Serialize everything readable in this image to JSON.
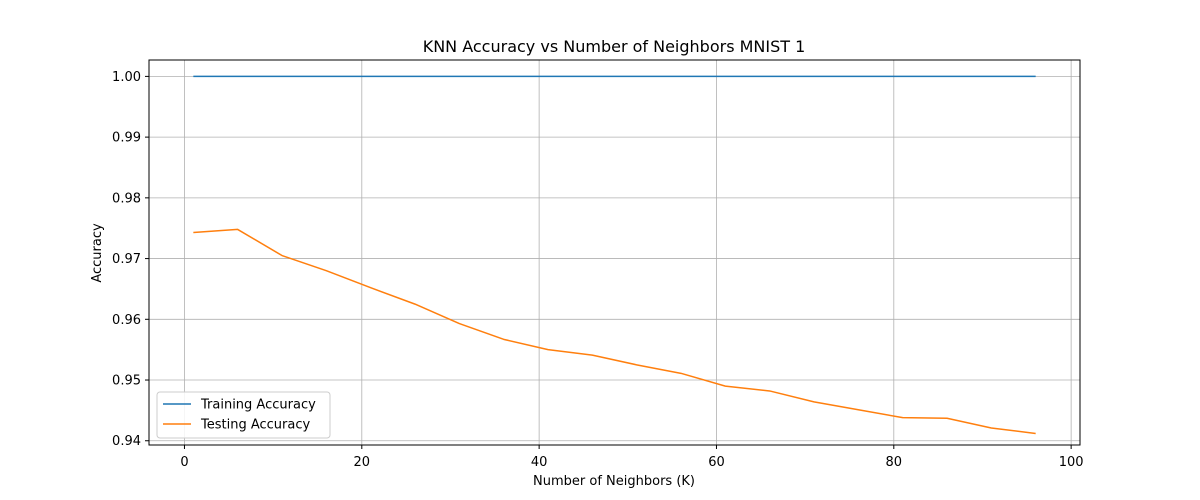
{
  "chart_data": {
    "type": "line",
    "title": "KNN Accuracy vs Number of Neighbors MNIST 1",
    "xlabel": "Number of Neighbors (K)",
    "ylabel": "Accuracy",
    "xlim": [
      -4,
      101
    ],
    "ylim": [
      0.9393,
      1.0027
    ],
    "xticks": [
      0,
      20,
      40,
      60,
      80,
      100
    ],
    "xtick_labels": [
      "0",
      "20",
      "40",
      "60",
      "80",
      "100"
    ],
    "yticks": [
      0.94,
      0.95,
      0.96,
      0.97,
      0.98,
      0.99,
      1.0
    ],
    "ytick_labels": [
      "0.94",
      "0.95",
      "0.96",
      "0.97",
      "0.98",
      "0.99",
      "1.00"
    ],
    "grid": true,
    "legend_position": "lower-left",
    "x": [
      1,
      6,
      11,
      16,
      21,
      26,
      31,
      36,
      41,
      46,
      51,
      56,
      61,
      66,
      71,
      76,
      81,
      86,
      91,
      96
    ],
    "series": [
      {
        "name": "Training Accuracy",
        "color": "#1f77b4",
        "values": [
          1.0,
          1.0,
          1.0,
          1.0,
          1.0,
          1.0,
          1.0,
          1.0,
          1.0,
          1.0,
          1.0,
          1.0,
          1.0,
          1.0,
          1.0,
          1.0,
          1.0,
          1.0,
          1.0,
          1.0
        ]
      },
      {
        "name": "Testing Accuracy",
        "color": "#ff7f0e",
        "values": [
          0.9743,
          0.9748,
          0.9705,
          0.968,
          0.9652,
          0.9625,
          0.9593,
          0.9567,
          0.955,
          0.9541,
          0.9525,
          0.9511,
          0.949,
          0.9482,
          0.9464,
          0.9451,
          0.9438,
          0.9437,
          0.9421,
          0.9412
        ]
      }
    ]
  }
}
